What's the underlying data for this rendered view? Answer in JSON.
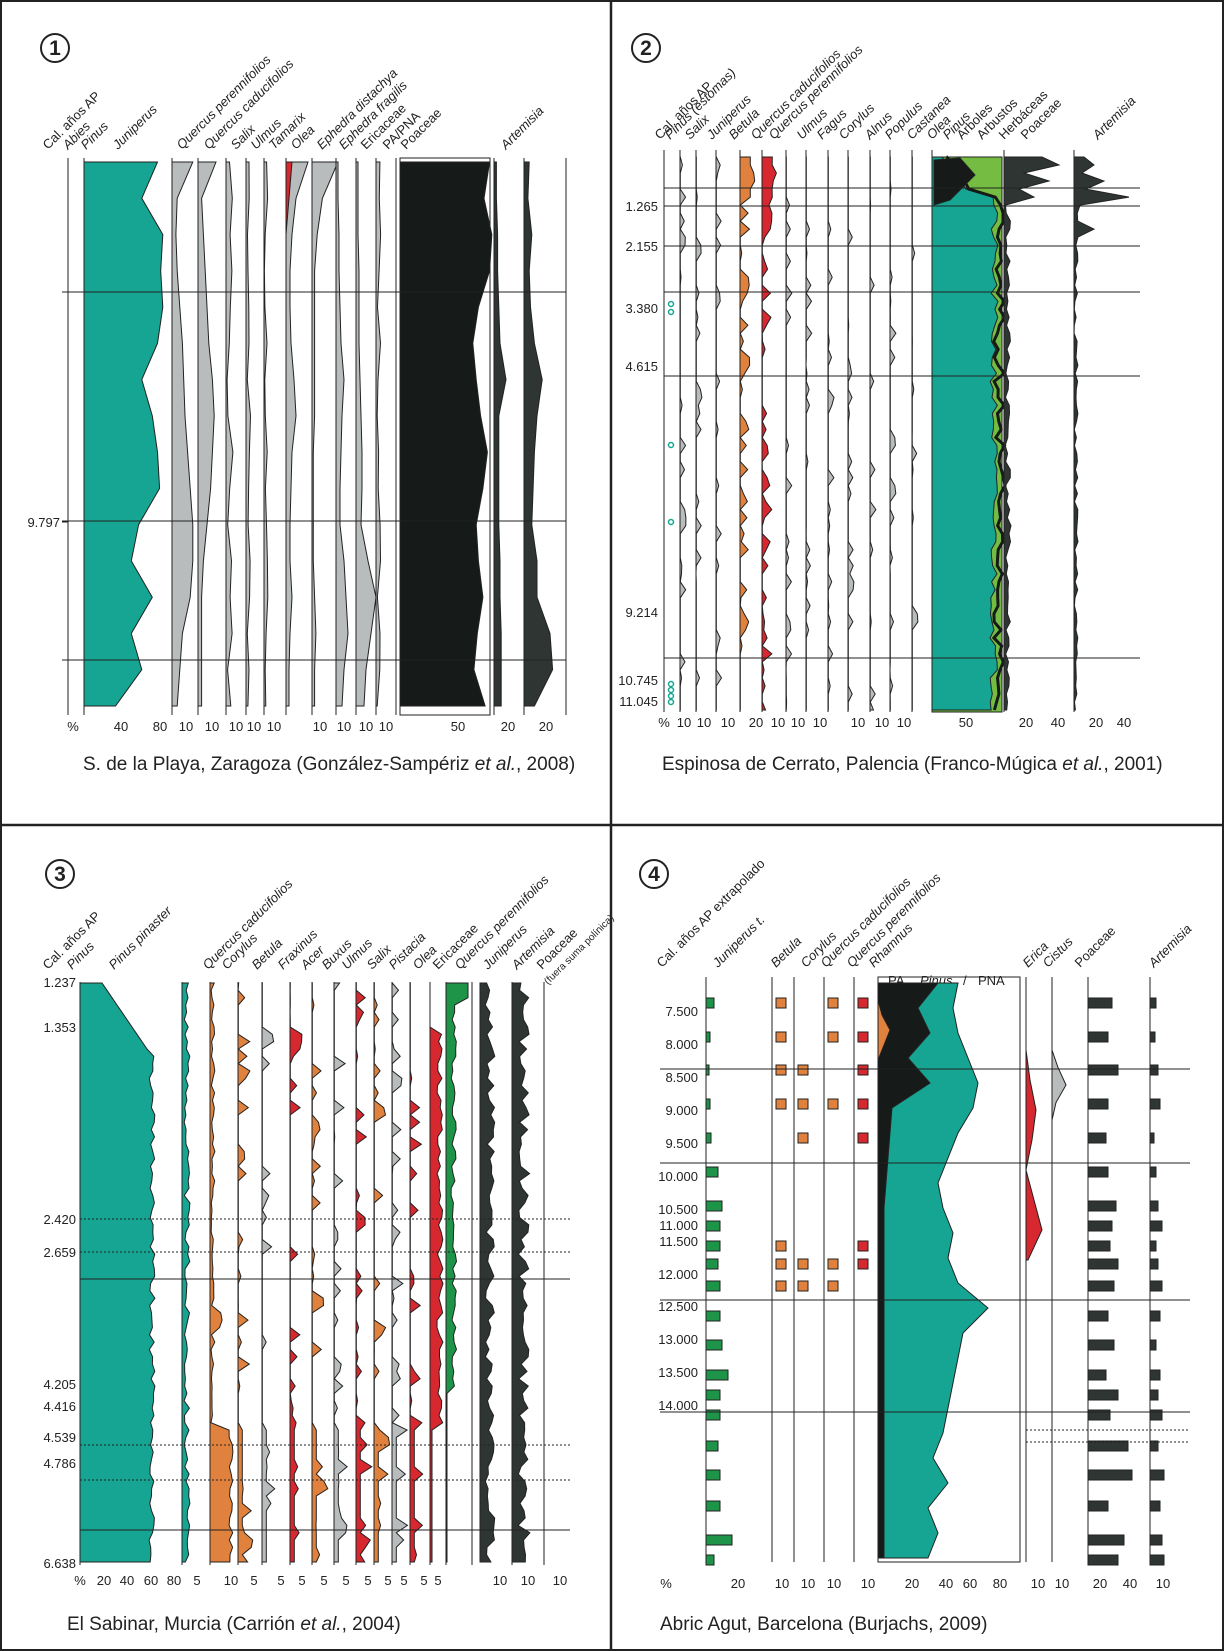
{
  "palette": {
    "teal": "#16a593",
    "gray": "#b9bcbd",
    "red": "#d7282f",
    "orange": "#e0823d",
    "green": "#1e9448",
    "lightgreen": "#74bd42",
    "dark": "#2e3533",
    "black": "#161a19",
    "brown": "#c98a63"
  },
  "panels": [
    {
      "number": "1",
      "caption_pre": "S. de la Playa, Zaragoza (González-Sampériz ",
      "caption_it": "et al.",
      "caption_post": ", 2008)",
      "columns": [
        {
          "label": "Cal. años AP",
          "italic": false
        },
        {
          "label": "Abies",
          "italic": true
        },
        {
          "label": "Pinus",
          "italic": true
        },
        {
          "label": "Juniperus",
          "italic": true
        },
        {
          "label": "Quercus perennifolios",
          "italic": true
        },
        {
          "label": "Quercus caducifolios",
          "italic": true
        },
        {
          "label": "Salix",
          "italic": true
        },
        {
          "label": "Ulmus",
          "italic": true
        },
        {
          "label": "Tamarix",
          "italic": true
        },
        {
          "label": "Olea",
          "italic": true
        },
        {
          "label": "Ephedra distachya",
          "italic": true
        },
        {
          "label": "Ephedra fragilis",
          "italic": true
        },
        {
          "label": "Ericaceae",
          "italic": false
        },
        {
          "label": "PA/PNA",
          "italic": false
        },
        {
          "label": "Poaceae",
          "italic": false
        },
        {
          "label": "Artemisia",
          "italic": true
        }
      ],
      "age_labels": [
        "9.797"
      ],
      "axis_ticks": [
        "%",
        "40",
        "80",
        "10",
        "10",
        "10",
        "10",
        "10",
        "10",
        "10",
        "10",
        "50",
        "20",
        "20"
      ]
    },
    {
      "number": "2",
      "caption_pre": "Espinosa de Cerrato, Palencia (Franco-Múgica ",
      "caption_it": "et al.",
      "caption_post": ", 2001)",
      "columns": [
        {
          "label": "Cal. años AP",
          "italic": false
        },
        {
          "label": "Pinus (estomas)",
          "italic": true
        },
        {
          "label": "Salix",
          "italic": true
        },
        {
          "label": "Juniperus",
          "italic": true
        },
        {
          "label": "Betula",
          "italic": true
        },
        {
          "label": "Quercus caducifolios",
          "italic": true
        },
        {
          "label": "Quercus perennifolios",
          "italic": true
        },
        {
          "label": "Ulmus",
          "italic": true
        },
        {
          "label": "Fagus",
          "italic": true
        },
        {
          "label": "Corylus",
          "italic": true
        },
        {
          "label": "Alnus",
          "italic": true
        },
        {
          "label": "Populus",
          "italic": true
        },
        {
          "label": "Castanea",
          "italic": true
        },
        {
          "label": "Olea",
          "italic": true
        },
        {
          "label": "Pinus",
          "italic": true
        },
        {
          "label": "Árboles",
          "italic": false
        },
        {
          "label": "Arbustos",
          "italic": false
        },
        {
          "label": "Herbáceas",
          "italic": false
        },
        {
          "label": "Poaceae",
          "italic": false
        },
        {
          "label": "Artemisia",
          "italic": true
        }
      ],
      "age_labels": [
        "1.265",
        "2.155",
        "3.380",
        "4.615",
        "9.214",
        "10.745",
        "11.045"
      ],
      "axis_ticks": [
        "%",
        "10",
        "10",
        "10",
        "20",
        "10",
        "10",
        "10",
        "10",
        "10",
        "10",
        "50",
        "20",
        "40",
        "20",
        "40"
      ]
    },
    {
      "number": "3",
      "caption_pre": "El Sabinar, Murcia (Carrión ",
      "caption_it": "et al.",
      "caption_post": ", 2004)",
      "columns": [
        {
          "label": "Cal. años AP",
          "italic": false
        },
        {
          "label": "Pinus",
          "italic": true
        },
        {
          "label": "Pinus pinaster",
          "italic": true
        },
        {
          "label": "Quercus caducifolios",
          "italic": true
        },
        {
          "label": "Corylus",
          "italic": true
        },
        {
          "label": "Betula",
          "italic": true
        },
        {
          "label": "Fraxinus",
          "italic": true
        },
        {
          "label": "Acer",
          "italic": true
        },
        {
          "label": "Buxus",
          "italic": true
        },
        {
          "label": "Ulmus",
          "italic": true
        },
        {
          "label": "Salix",
          "italic": true
        },
        {
          "label": "Pistacia",
          "italic": true
        },
        {
          "label": "Olea",
          "italic": true
        },
        {
          "label": "Ericaceae",
          "italic": false
        },
        {
          "label": "Quercus perennifolios",
          "italic": true
        },
        {
          "label": "Juniperus",
          "italic": true
        },
        {
          "label": "Artemisia",
          "italic": true
        },
        {
          "label": "Poaceae",
          "italic": false
        },
        {
          "label": "(fuera suma polínica)",
          "italic": false
        }
      ],
      "age_labels": [
        "1.237",
        "1.353",
        "2.420",
        "2.659",
        "4.205",
        "4.416",
        "4.539",
        "4.786",
        "6.638"
      ],
      "axis_ticks": [
        "%",
        "20",
        "40",
        "60",
        "80",
        "5",
        "10",
        "5",
        "5",
        "5",
        "5",
        "5",
        "5",
        "5",
        "5",
        "5",
        "5",
        "10",
        "10",
        "10"
      ]
    },
    {
      "number": "4",
      "caption_pre": "Abric Agut, Barcelona (Burjachs, 2009)",
      "caption_it": "",
      "caption_post": "",
      "columns": [
        {
          "label": "Cal. años AP extrapolado",
          "italic": false
        },
        {
          "label": "Juniperus t.",
          "italic": true
        },
        {
          "label": "Betula",
          "italic": true
        },
        {
          "label": "Corylus",
          "italic": true
        },
        {
          "label": "Quercus caducifolios",
          "italic": true
        },
        {
          "label": "Quercus perennifolios",
          "italic": true
        },
        {
          "label": "Rhamnus",
          "italic": true
        },
        {
          "label": "Erica",
          "italic": true
        },
        {
          "label": "Cistus",
          "italic": true
        },
        {
          "label": "Poaceae",
          "italic": false
        },
        {
          "label": "Artemisia",
          "italic": true
        }
      ],
      "inner_header": [
        "PA",
        "Pinus",
        "/",
        "PNA"
      ],
      "age_labels": [
        "7.500",
        "8.000",
        "8.500",
        "9.000",
        "9.500",
        "10.000",
        "10.500",
        "11.000",
        "11.500",
        "12.000",
        "12.500",
        "13.000",
        "13.500",
        "14.000"
      ],
      "axis_ticks": [
        "%",
        "20",
        "10",
        "10",
        "10",
        "10",
        "20",
        "40",
        "60",
        "80",
        "10",
        "10",
        "20",
        "40",
        "10"
      ]
    }
  ],
  "chart_data": [
    {
      "type": "area",
      "title": "S. de la Playa, Zaragoza (González-Sampériz et al., 2008)",
      "ylabel": "Cal. años AP",
      "y_tick_labels": [
        "9.797"
      ],
      "series": [
        {
          "name": "Pinus",
          "unit": "%",
          "values": [
            70,
            55,
            75,
            73,
            75,
            70,
            55,
            65,
            70,
            72,
            52,
            45,
            65,
            45,
            55,
            30
          ]
        },
        {
          "name": "Juniperus",
          "unit": "%",
          "values": [
            16,
            4,
            3,
            4,
            6,
            8,
            9,
            10,
            12,
            14,
            16,
            16,
            14,
            8,
            6,
            4
          ]
        },
        {
          "name": "Quercus perennifolios",
          "unit": "%",
          "values": [
            10,
            2,
            3,
            4,
            5,
            6,
            8,
            9,
            8,
            7,
            5,
            3,
            2,
            2,
            2,
            2
          ]
        },
        {
          "name": "Olea",
          "unit": "%",
          "values": [
            20,
            8,
            4,
            2,
            2,
            2,
            2,
            2,
            1,
            1,
            1,
            1,
            2,
            3,
            2,
            2
          ]
        },
        {
          "name": "PA/PNA",
          "unit": "%",
          "values": [
            80,
            75,
            82,
            80,
            70,
            65,
            68,
            72,
            78,
            74,
            68,
            70,
            74,
            69,
            66,
            76
          ]
        },
        {
          "name": "Poaceae",
          "unit": "%",
          "values": [
            2,
            2,
            3,
            3,
            4,
            5,
            10,
            4,
            4,
            4,
            4,
            5,
            5,
            6,
            6,
            6
          ]
        },
        {
          "name": "Artemisia",
          "unit": "%",
          "values": [
            4,
            3,
            6,
            4,
            5,
            8,
            14,
            10,
            8,
            7,
            6,
            10,
            10,
            20,
            22,
            8
          ]
        }
      ]
    },
    {
      "type": "area",
      "title": "Espinosa de Cerrato, Palencia (Franco-Múgica et al., 2001)",
      "ylabel": "Cal. años AP",
      "y_tick_labels": [
        "1.265",
        "2.155",
        "3.380",
        "4.615",
        "9.214",
        "10.745",
        "11.045"
      ],
      "series": [
        {
          "name": "Quercus caducifolios",
          "unit": "%",
          "values": [
            14,
            8,
            6,
            4,
            3,
            3,
            2,
            2,
            2,
            2,
            2,
            2
          ]
        },
        {
          "name": "Quercus perennifolios",
          "unit": "%",
          "values": [
            12,
            8,
            6,
            4,
            3,
            4,
            3,
            3,
            3,
            2,
            2,
            2
          ]
        },
        {
          "name": "Pinus",
          "unit": "%",
          "values": [
            5,
            60,
            65,
            68,
            70,
            72,
            72,
            73,
            72,
            70,
            70,
            72
          ]
        },
        {
          "name": "Poaceae",
          "unit": "%",
          "values": [
            40,
            10,
            8,
            6,
            5,
            5,
            4,
            4,
            4,
            3,
            3,
            3
          ]
        },
        {
          "name": "Artemisia",
          "unit": "%",
          "values": [
            35,
            6,
            4,
            3,
            3,
            2,
            2,
            2,
            2,
            2,
            1,
            2
          ]
        }
      ]
    },
    {
      "type": "area",
      "title": "El Sabinar, Murcia (Carrión et al., 2004)",
      "ylabel": "Cal. años AP",
      "y_tick_labels": [
        "1.237",
        "1.353",
        "2.420",
        "2.659",
        "4.205",
        "4.416",
        "4.539",
        "4.786",
        "6.638"
      ],
      "series": [
        {
          "name": "Pinus",
          "unit": "%",
          "values": [
            30,
            72,
            72,
            72,
            72,
            72,
            72,
            72,
            72,
            72,
            72
          ]
        },
        {
          "name": "Quercus caducifolios",
          "unit": "%",
          "values": [
            2,
            2,
            2,
            3,
            3,
            3,
            4,
            5,
            8,
            14,
            16
          ]
        },
        {
          "name": "Quercus perennifolios",
          "unit": "%",
          "values": [
            4,
            6,
            5,
            4,
            4,
            3,
            3,
            2,
            1,
            1,
            1
          ]
        },
        {
          "name": "Juniperus",
          "unit": "%",
          "values": [
            12,
            4,
            3,
            3,
            3,
            3,
            3,
            3,
            1,
            1,
            1
          ]
        },
        {
          "name": "Artemisia",
          "unit": "%",
          "values": [
            10,
            6,
            5,
            5,
            6,
            6,
            7,
            7,
            9,
            10,
            8
          ]
        },
        {
          "name": "Poaceae (fuera suma polínica)",
          "unit": "%",
          "values": [
            12,
            8,
            8,
            9,
            9,
            10,
            10,
            11,
            12,
            11,
            10
          ]
        }
      ]
    },
    {
      "type": "bar",
      "title": "Abric Agut, Barcelona (Burjachs, 2009)",
      "ylabel": "Cal. años AP extrapolado",
      "categories": [
        "7.500",
        "8.000",
        "8.500",
        "9.000",
        "9.500",
        "10.000",
        "10.500",
        "11.000",
        "11.500",
        "12.000",
        "12.500",
        "13.000",
        "13.500",
        "14.000"
      ],
      "series": [
        {
          "name": "Pinus",
          "unit": "%",
          "values": [
            35,
            25,
            20,
            40,
            45,
            35,
            25,
            20,
            25,
            60,
            45,
            40,
            50,
            30
          ]
        },
        {
          "name": "Poaceae",
          "unit": "%",
          "values": [
            20,
            30,
            8,
            10,
            10,
            20,
            15,
            30,
            20,
            30,
            20,
            45,
            40,
            25
          ]
        },
        {
          "name": "Artemisia",
          "unit": "%",
          "values": [
            5,
            6,
            6,
            3,
            4,
            9,
            4,
            6,
            8,
            6,
            6,
            4,
            8,
            8
          ]
        }
      ]
    }
  ]
}
